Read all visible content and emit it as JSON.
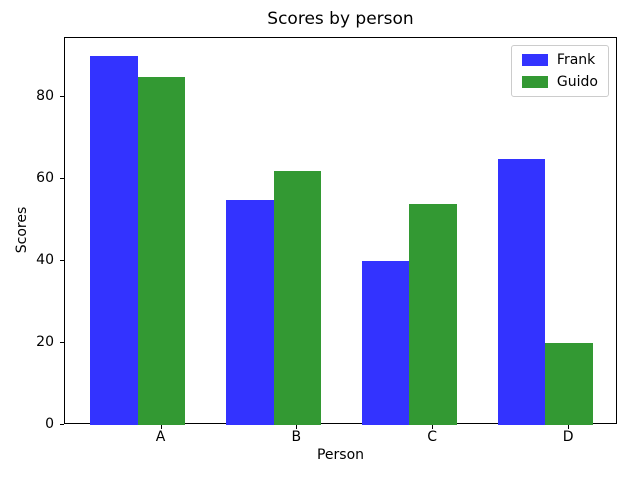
{
  "chart_data": {
    "type": "bar",
    "title": "Scores by person",
    "xlabel": "Person",
    "ylabel": "Scores",
    "categories": [
      "A",
      "B",
      "C",
      "D"
    ],
    "series": [
      {
        "name": "Frank",
        "color": "#3333ff",
        "values": [
          90,
          55,
          40,
          65
        ]
      },
      {
        "name": "Guido",
        "color": "#339933",
        "values": [
          85,
          62,
          54,
          20
        ]
      }
    ],
    "ylim": [
      0,
      94.5
    ],
    "yticks": [
      0,
      20,
      40,
      60,
      80
    ],
    "grid": false,
    "legend_position": "upper right",
    "bar_width_fraction": 0.35,
    "background": "#ffffff"
  }
}
